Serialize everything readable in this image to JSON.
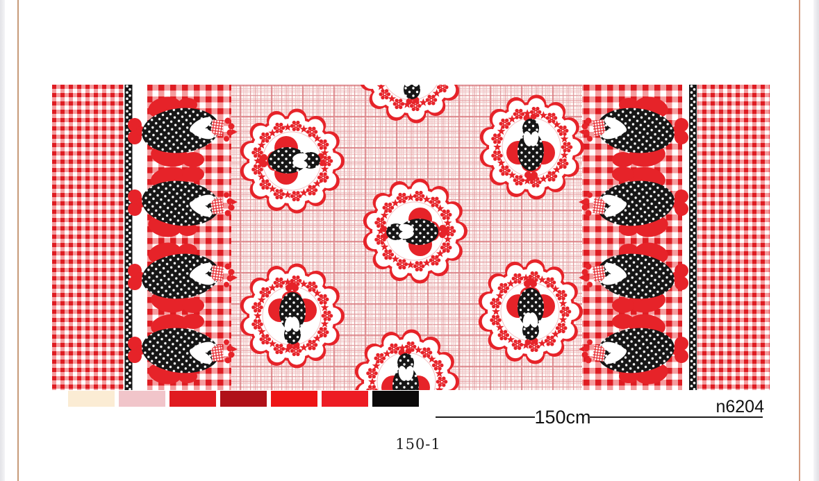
{
  "document": {
    "design_code": "n6204",
    "width_label": "150cm",
    "colorway_label": "150-1",
    "palette": [
      {
        "name": "cream",
        "hex": "#fbecd4"
      },
      {
        "name": "light-pink",
        "hex": "#f1c5ca"
      },
      {
        "name": "red",
        "hex": "#e01b20"
      },
      {
        "name": "dark-red",
        "hex": "#b01119"
      },
      {
        "name": "bright-red",
        "hex": "#ee1516"
      },
      {
        "name": "scarlet",
        "hex": "#ed1c24"
      },
      {
        "name": "black",
        "hex": "#0b0909"
      }
    ],
    "fabric": {
      "description": "rooster and doily gingham border print",
      "accent_red": "#e62329",
      "ink_black": "#161616",
      "doily_count": 7,
      "border_roosters_per_side": 4
    }
  }
}
